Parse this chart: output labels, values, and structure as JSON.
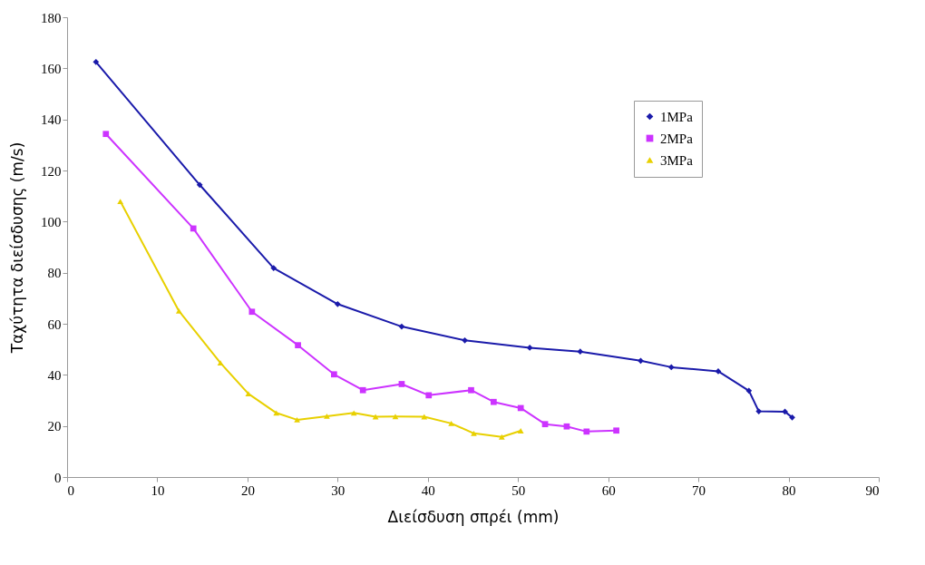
{
  "chart_data": {
    "type": "line",
    "xlabel": "Διείσδυση σπρέι   (mm)",
    "ylabel": "Ταχύτητα διείσδυσης     (m/s)",
    "xlim": [
      0,
      90
    ],
    "xticks": [
      0,
      10,
      20,
      30,
      40,
      50,
      60,
      70,
      80,
      90
    ],
    "ylim": [
      0,
      180
    ],
    "yticks": [
      0,
      20,
      40,
      60,
      80,
      100,
      120,
      140,
      160,
      180
    ],
    "grid": false,
    "legend": "top right",
    "series": [
      {
        "name": "1MPa",
        "color": "#1a1aaa",
        "marker": "diamond",
        "x": [
          3.2,
          14.7,
          22.9,
          30.0,
          37.1,
          44.1,
          51.3,
          56.9,
          63.6,
          67.0,
          72.2,
          75.6,
          76.7,
          79.6,
          80.4
        ],
        "values": [
          162.5,
          114.4,
          81.8,
          67.7,
          58.9,
          53.5,
          50.6,
          49.1,
          45.5,
          43.0,
          41.4,
          33.8,
          25.7,
          25.6,
          23.3
        ]
      },
      {
        "name": "2MPa",
        "color": "#cc33ff",
        "marker": "square",
        "x": [
          4.3,
          14.0,
          20.5,
          25.6,
          29.6,
          32.8,
          37.1,
          40.1,
          44.8,
          47.3,
          50.3,
          53.0,
          55.4,
          57.6,
          60.9
        ],
        "values": [
          134.3,
          97.3,
          64.7,
          51.6,
          40.2,
          34.0,
          36.4,
          32.0,
          34.0,
          29.4,
          27.0,
          20.7,
          19.8,
          17.8,
          18.2
        ]
      },
      {
        "name": "3MPa",
        "color": "#e8d000",
        "marker": "triangle",
        "x": [
          5.9,
          12.4,
          17.0,
          20.1,
          23.2,
          25.5,
          28.8,
          31.8,
          34.2,
          36.4,
          39.6,
          42.6,
          45.1,
          48.2,
          50.3
        ],
        "values": [
          107.9,
          65.0,
          44.7,
          32.6,
          25.1,
          22.4,
          23.8,
          25.1,
          23.6,
          23.7,
          23.6,
          21.0,
          17.1,
          15.7,
          18.1
        ]
      }
    ]
  }
}
